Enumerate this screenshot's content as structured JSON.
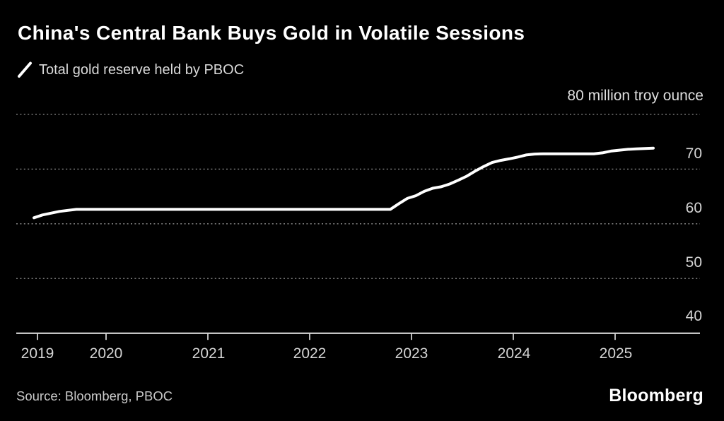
{
  "header": {
    "title": "China's Central Bank Buys Gold in Volatile Sessions",
    "legend_label": "Total gold reserve held by PBOC"
  },
  "axis": {
    "unit_label": "80 million troy ounce",
    "ytick_labels": [
      "70",
      "60",
      "50",
      "40"
    ],
    "xtick_labels": [
      "2019",
      "2020",
      "2021",
      "2022",
      "2023",
      "2024",
      "2025"
    ]
  },
  "footer": {
    "source": "Source: Bloomberg, PBOC",
    "brand": "Bloomberg"
  },
  "colors": {
    "background": "#000000",
    "line": "#ffffff",
    "grid": "#8f8f8f",
    "axis": "#e8e8e8",
    "text_secondary": "#d5d5d5"
  },
  "chart_data": {
    "type": "line",
    "title": "China's Central Bank Buys Gold in Volatile Sessions",
    "legend": [
      "Total gold reserve held by PBOC"
    ],
    "legend_position": "top-left",
    "ylabel": "million troy ounce",
    "ylim": [
      40,
      80
    ],
    "yticks": [
      40,
      50,
      60,
      70,
      80
    ],
    "ytick_side": "right",
    "xticks": [
      2019,
      2020,
      2021,
      2022,
      2023,
      2024,
      2025
    ],
    "grid": "horizontal dotted",
    "series": [
      {
        "name": "Total gold reserve held by PBOC",
        "color": "#ffffff",
        "start_month": "2019-04",
        "interval": "monthly",
        "unit": "million troy ounce",
        "values": [
          61.1,
          61.61,
          61.94,
          62.26,
          62.45,
          62.64,
          62.64,
          62.64,
          62.64,
          62.64,
          62.64,
          62.64,
          62.64,
          62.64,
          62.64,
          62.64,
          62.64,
          62.64,
          62.64,
          62.64,
          62.64,
          62.64,
          62.64,
          62.64,
          62.64,
          62.64,
          62.64,
          62.64,
          62.64,
          62.64,
          62.64,
          62.64,
          62.64,
          62.64,
          62.64,
          62.64,
          62.64,
          62.64,
          62.64,
          62.64,
          62.64,
          62.64,
          62.64,
          63.67,
          64.64,
          65.12,
          65.92,
          66.5,
          66.76,
          67.27,
          67.95,
          68.69,
          69.62,
          70.46,
          71.2,
          71.58,
          71.87,
          72.19,
          72.58,
          72.74,
          72.8,
          72.8,
          72.8,
          72.8,
          72.8,
          72.8,
          72.8,
          72.96,
          73.29,
          73.45,
          73.61,
          73.7,
          73.77,
          73.83
        ]
      }
    ]
  }
}
